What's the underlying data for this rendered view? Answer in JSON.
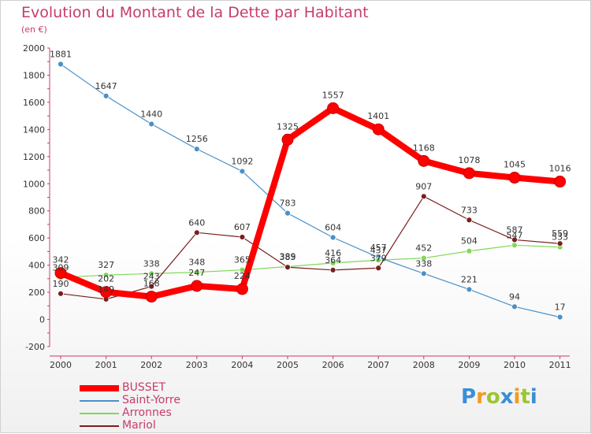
{
  "title": "Evolution du Montant de la Dette par Habitant",
  "subtitle": "(en €)",
  "logo": {
    "letters": [
      "P",
      "r",
      "o",
      "x",
      "i",
      "t",
      "i"
    ],
    "colors": [
      "#3a8fd6",
      "#f29a1f",
      "#9bc531",
      "#3a8fd6",
      "#f29a1f",
      "#9bc531",
      "#3a8fd6"
    ]
  },
  "chart_data": {
    "type": "line",
    "x": [
      "2000",
      "2001",
      "2002",
      "2003",
      "2004",
      "2005",
      "2006",
      "2007",
      "2008",
      "2009",
      "2010",
      "2011"
    ],
    "ylim": [
      -200,
      2000
    ],
    "yticks": [
      "-200",
      "0",
      "200",
      "400",
      "600",
      "800",
      "1000",
      "1200",
      "1400",
      "1600",
      "1800",
      "2000"
    ],
    "grid": false,
    "legend": "bottom-left",
    "series": [
      {
        "name": "BUSSET",
        "color": "#ff0000",
        "values": [
          342,
          202,
          168,
          247,
          224,
          1325,
          1557,
          1401,
          1168,
          1078,
          1045,
          1016
        ]
      },
      {
        "name": "Saint-Yorre",
        "color": "#4a90c8",
        "values": [
          1881,
          1647,
          1440,
          1256,
          1092,
          783,
          604,
          457,
          338,
          221,
          94,
          17
        ]
      },
      {
        "name": "Arronnes",
        "color": "#7ed957",
        "values": [
          309,
          327,
          338,
          348,
          365,
          389,
          416,
          437,
          452,
          504,
          547,
          533
        ]
      },
      {
        "name": "Mariol",
        "color": "#7a1e1e",
        "values": [
          190,
          149,
          243,
          640,
          607,
          385,
          364,
          379,
          907,
          733,
          587,
          559
        ]
      }
    ]
  }
}
